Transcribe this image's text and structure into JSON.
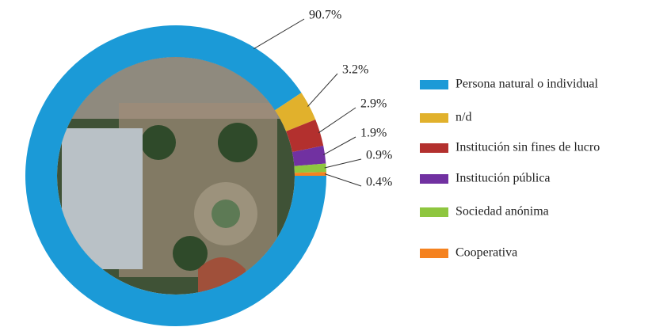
{
  "chart_data": {
    "type": "donut",
    "categories": [
      "Persona natural o individual",
      "n/d",
      "Institución sin fines de lucro",
      "Institución pública",
      "Sociedad anónima",
      "Cooperativa"
    ],
    "values": [
      90.7,
      3.2,
      2.9,
      1.9,
      0.9,
      0.4
    ],
    "value_labels": [
      "90.7%",
      "3.2%",
      "2.9%",
      "1.9%",
      "0.9%",
      "0.4%"
    ],
    "colors": [
      "#1b9ad7",
      "#e1b12c",
      "#b3302e",
      "#7131a1",
      "#8ec63f",
      "#f5821f"
    ]
  }
}
